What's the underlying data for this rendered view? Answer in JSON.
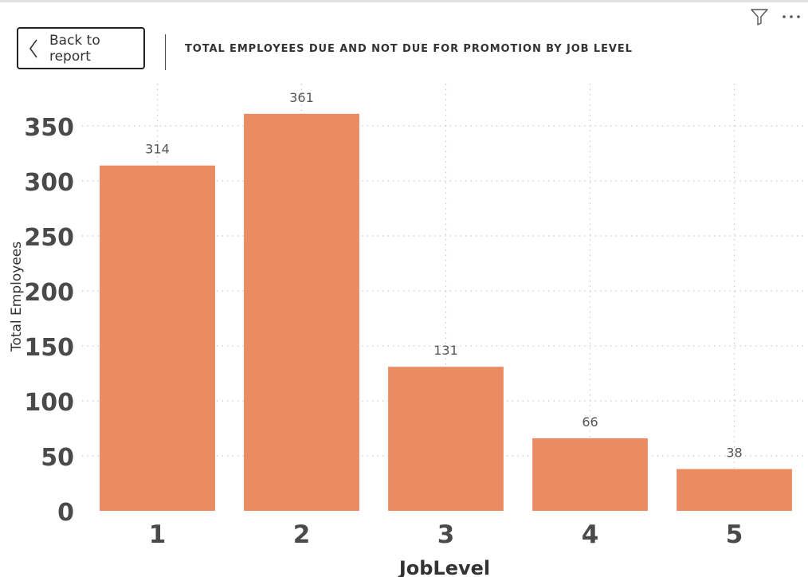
{
  "header": {
    "back_label": "Back to report",
    "title": "TOTAL EMPLOYEES DUE AND NOT DUE FOR PROMOTION BY JOB LEVEL",
    "filter_icon": "filter-icon",
    "more_icon": "more-options-icon",
    "back_icon": "chevron-left-icon"
  },
  "colors": {
    "bar": "#EB8B61",
    "grid": "#c8c8c8",
    "axis_text": "#4a4a4a",
    "label_text": "#555555"
  },
  "chart_data": {
    "type": "bar",
    "categories": [
      "1",
      "2",
      "3",
      "4",
      "5"
    ],
    "values": [
      314,
      361,
      131,
      66,
      38
    ],
    "data_labels": [
      "314",
      "361",
      "131",
      "66",
      "38"
    ],
    "title": "TOTAL EMPLOYEES DUE AND NOT DUE FOR PROMOTION BY JOB LEVEL",
    "xlabel": "JobLevel",
    "ylabel": "Total Employees",
    "ylim": [
      0,
      372
    ],
    "yticks": [
      0,
      50,
      100,
      150,
      200,
      250,
      300,
      350
    ],
    "grid": true
  }
}
